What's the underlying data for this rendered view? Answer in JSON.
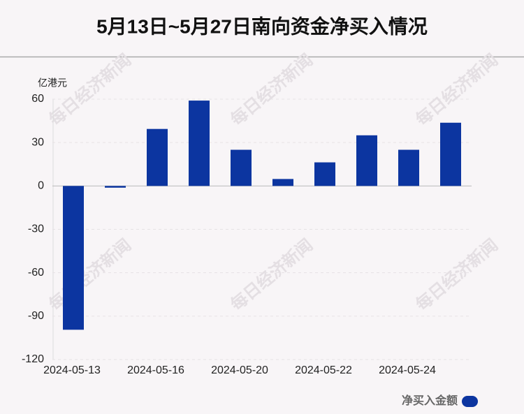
{
  "chart_data": {
    "type": "bar",
    "title": "5月13日~5月27日南向资金净买入情况",
    "y_label": "亿港元",
    "watermark": "每日经济新闻",
    "categories": [
      "2024-05-13",
      null,
      "2024-05-16",
      null,
      "2024-05-20",
      null,
      "2024-05-22",
      null,
      "2024-05-24",
      null
    ],
    "series": [
      {
        "name": "净买入金额",
        "color": "#0c35a0",
        "values": [
          -99.4,
          -1.2,
          39.4,
          59.0,
          25.0,
          4.8,
          16.3,
          35.0,
          25.0,
          43.7
        ]
      }
    ],
    "ylim": [
      -120,
      60
    ],
    "yticks": [
      -120,
      -90,
      -60,
      -30,
      0,
      30,
      60
    ],
    "grid": true,
    "legend": "bottom-right"
  }
}
